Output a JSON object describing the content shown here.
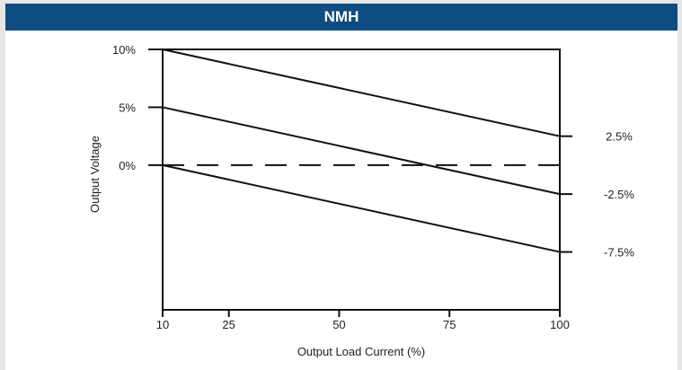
{
  "header": {
    "title": "NMH"
  },
  "chart_data": {
    "type": "line",
    "title": "NMH",
    "xlabel": "Output Load Current (%)",
    "ylabel": "Output Voltage",
    "xlim": [
      10,
      100
    ],
    "ylim": [
      -12.5,
      10
    ],
    "x_ticks": [
      {
        "value": 10,
        "label": "10"
      },
      {
        "value": 25,
        "label": "25"
      },
      {
        "value": 50,
        "label": "50"
      },
      {
        "value": 75,
        "label": "75"
      },
      {
        "value": 100,
        "label": "100"
      }
    ],
    "y_ticks_left": [
      {
        "value": 10,
        "label": "10%"
      },
      {
        "value": 5,
        "label": "5%"
      },
      {
        "value": 0,
        "label": "0%"
      }
    ],
    "y_ticks_right": [
      {
        "value": 2.5,
        "label": "2.5%"
      },
      {
        "value": -2.5,
        "label": "-2.5%"
      },
      {
        "value": -7.5,
        "label": "-7.5%"
      }
    ],
    "series": [
      {
        "x": [
          10,
          100
        ],
        "y": [
          10,
          2.5
        ],
        "style": "solid"
      },
      {
        "x": [
          10,
          100
        ],
        "y": [
          5,
          -2.5
        ],
        "style": "solid"
      },
      {
        "x": [
          10,
          100
        ],
        "y": [
          0,
          -7.5
        ],
        "style": "solid"
      },
      {
        "x": [
          10,
          100
        ],
        "y": [
          0,
          0
        ],
        "style": "dashed"
      }
    ],
    "grid": false,
    "colors": {
      "line": "#111111",
      "header": "#0f4c81"
    }
  }
}
